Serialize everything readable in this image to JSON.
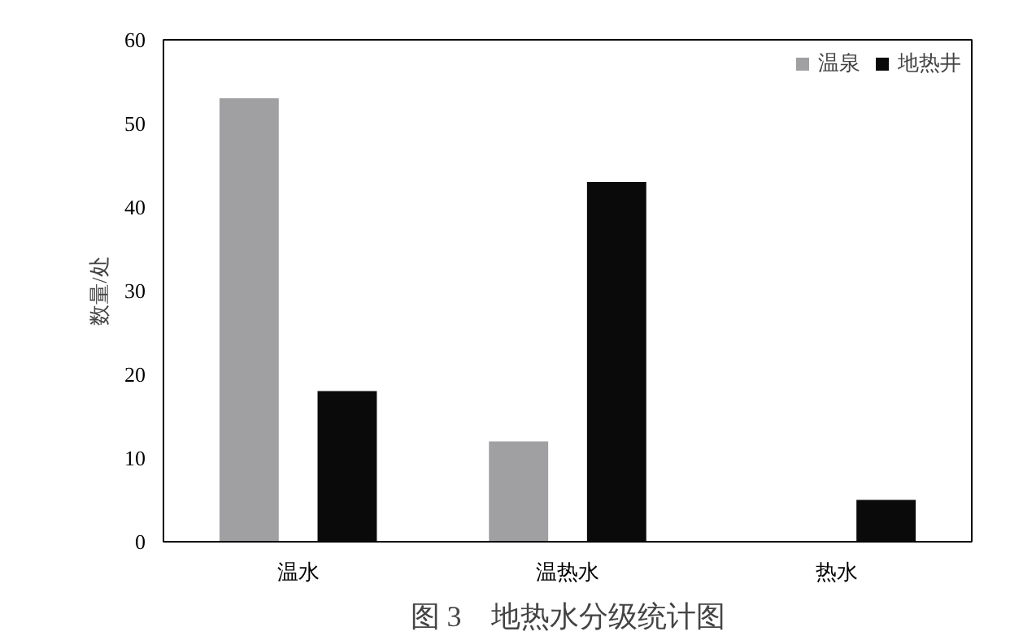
{
  "chart_data": {
    "type": "bar",
    "title": "图 3　地热水分级统计图",
    "ylabel": "数量/处",
    "categories": [
      "温水",
      "温热水",
      "热水"
    ],
    "series": [
      {
        "name": "温泉",
        "color": "#a0a0a2",
        "values": [
          53,
          12,
          0
        ]
      },
      {
        "name": "地热井",
        "color": "#0a0a0a",
        "values": [
          18,
          43,
          5
        ]
      }
    ],
    "ylim": [
      0,
      60
    ],
    "yticks": [
      0,
      10,
      20,
      30,
      40,
      50,
      60
    ],
    "grid": false,
    "legend": "top right"
  }
}
